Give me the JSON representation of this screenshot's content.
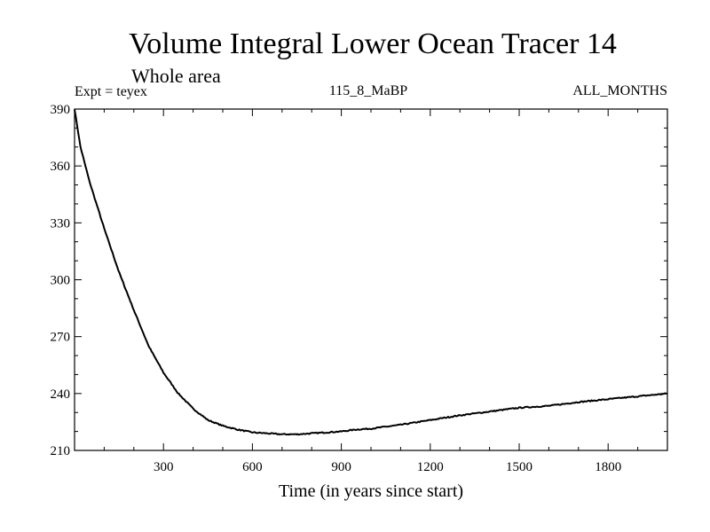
{
  "chart_data": {
    "type": "line",
    "title": "Volume Integral Lower Ocean Tracer 14",
    "subtitle": "Whole area",
    "experiment_label": "Expt = teyex",
    "period_label": "115_8_MaBP",
    "months_label": "ALL_MONTHS",
    "xlabel": "Time (in years since start)",
    "ylabel": "",
    "xlim": [
      0,
      2000
    ],
    "ylim": [
      210,
      390
    ],
    "x_ticks": [
      300,
      600,
      900,
      1200,
      1500,
      1800
    ],
    "x_tick_labels": [
      "300",
      "600",
      "900",
      "1200",
      "1500",
      "1800"
    ],
    "y_ticks": [
      210,
      240,
      270,
      300,
      330,
      360,
      390
    ],
    "y_tick_labels": [
      "210",
      "240",
      "270",
      "300",
      "330",
      "360",
      "390"
    ],
    "series": [
      {
        "name": "Lower Ocean Tracer 14",
        "color": "#000000",
        "x": [
          0,
          20,
          50,
          100,
          150,
          200,
          250,
          300,
          350,
          400,
          450,
          500,
          550,
          600,
          650,
          700,
          750,
          800,
          850,
          900,
          950,
          1000,
          1100,
          1200,
          1300,
          1400,
          1500,
          1600,
          1700,
          1800,
          1900,
          2000
        ],
        "y": [
          390,
          370,
          352,
          327,
          304,
          284,
          265,
          251,
          240,
          232,
          226,
          223,
          221,
          219.5,
          219,
          218.5,
          218.5,
          219,
          219.5,
          220,
          221,
          221.5,
          223.5,
          226,
          228.5,
          230.5,
          232.5,
          233.5,
          235.5,
          237,
          238.5,
          240
        ]
      }
    ]
  }
}
